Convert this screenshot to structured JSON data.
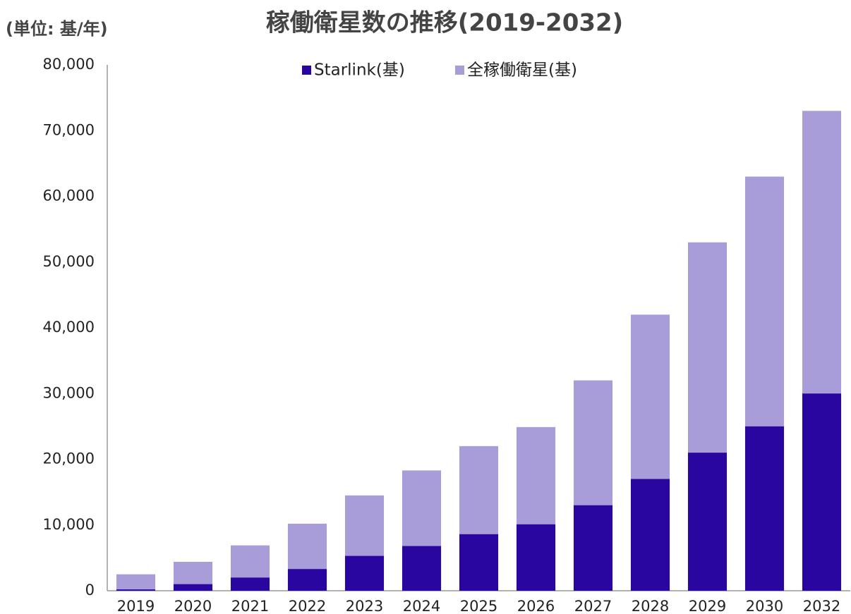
{
  "chart_data": {
    "type": "bar",
    "title": "稼働衛星数の推移(2019-2032)",
    "unit_label": "(単位: 基/年)",
    "categories": [
      "2019",
      "2020",
      "2021",
      "2022",
      "2023",
      "2024",
      "2025",
      "2026",
      "2027",
      "2028",
      "2029",
      "2030",
      "2032"
    ],
    "series": [
      {
        "name": "Starlink(基)",
        "color": "#2a06a0",
        "values": [
          200,
          1000,
          2000,
          3300,
          5300,
          6800,
          8600,
          10100,
          13000,
          17000,
          21000,
          25000,
          30000
        ]
      },
      {
        "name": "全稼働衛星(基)",
        "color": "#a89cd9",
        "values": [
          2500,
          4400,
          6900,
          10200,
          14500,
          18300,
          22000,
          24900,
          32000,
          42000,
          53000,
          63000,
          73000
        ]
      }
    ],
    "ylim": [
      0,
      80000
    ],
    "yticks": [
      0,
      {
        "value": 10000,
        "label": "10,000"
      },
      {
        "value": 20000,
        "label": "20,000"
      },
      {
        "value": 30000,
        "label": "30,000"
      },
      {
        "value": 40000,
        "label": "40,000"
      },
      {
        "value": 50000,
        "label": "50,000"
      },
      {
        "value": 60000,
        "label": "60,000"
      },
      {
        "value": 70000,
        "label": "70,000"
      },
      {
        "value": 80000,
        "label": "80,000"
      }
    ],
    "grid": false,
    "legend": "top"
  }
}
